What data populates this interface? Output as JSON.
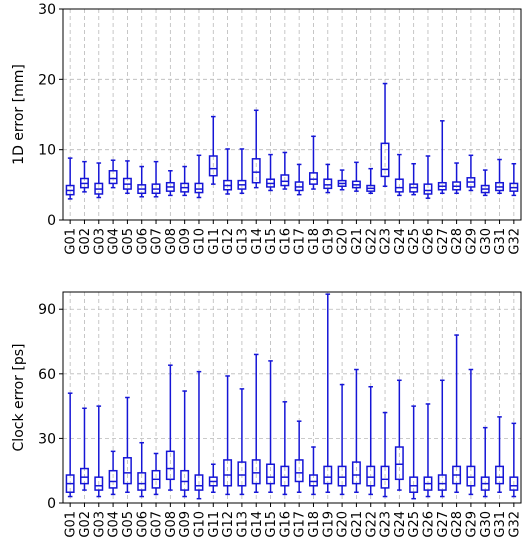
{
  "figure": {
    "colors": {
      "box": "#1515d6",
      "grid": "#b9b9b9",
      "axis": "#000000"
    }
  },
  "chart_data": [
    {
      "type": "box",
      "ylabel": "1D error [mm]",
      "ylim": [
        0,
        30
      ],
      "yticks": [
        0,
        10,
        20,
        30
      ],
      "grid": true,
      "categories": [
        "G01",
        "G02",
        "G03",
        "G04",
        "G05",
        "G06",
        "G07",
        "G08",
        "G09",
        "G10",
        "G11",
        "G12",
        "G13",
        "G14",
        "G15",
        "G16",
        "G17",
        "G18",
        "G19",
        "G20",
        "G21",
        "G22",
        "G23",
        "G24",
        "G25",
        "G26",
        "G27",
        "G28",
        "G29",
        "G30",
        "G31",
        "G32"
      ],
      "boxes": [
        {
          "min": 3.0,
          "q1": 3.6,
          "median": 4.2,
          "q3": 4.9,
          "max": 8.8
        },
        {
          "min": 4.0,
          "q1": 4.6,
          "median": 5.2,
          "q3": 5.9,
          "max": 8.3
        },
        {
          "min": 3.2,
          "q1": 3.7,
          "median": 4.4,
          "q3": 5.2,
          "max": 8.1
        },
        {
          "min": 4.6,
          "q1": 5.2,
          "median": 5.9,
          "q3": 7.0,
          "max": 8.5
        },
        {
          "min": 3.8,
          "q1": 4.4,
          "median": 5.1,
          "q3": 5.9,
          "max": 8.4
        },
        {
          "min": 3.3,
          "q1": 3.8,
          "median": 4.4,
          "q3": 5.0,
          "max": 7.6
        },
        {
          "min": 3.3,
          "q1": 3.8,
          "median": 4.4,
          "q3": 5.1,
          "max": 8.3
        },
        {
          "min": 3.5,
          "q1": 4.1,
          "median": 4.7,
          "q3": 5.3,
          "max": 7.0
        },
        {
          "min": 3.5,
          "q1": 4.0,
          "median": 4.6,
          "q3": 5.2,
          "max": 7.6
        },
        {
          "min": 3.2,
          "q1": 3.9,
          "median": 4.4,
          "q3": 5.2,
          "max": 9.2
        },
        {
          "min": 5.1,
          "q1": 6.3,
          "median": 7.3,
          "q3": 9.1,
          "max": 14.7
        },
        {
          "min": 3.7,
          "q1": 4.3,
          "median": 4.9,
          "q3": 5.6,
          "max": 10.1
        },
        {
          "min": 3.8,
          "q1": 4.4,
          "median": 5.0,
          "q3": 5.6,
          "max": 10.1
        },
        {
          "min": 4.6,
          "q1": 5.3,
          "median": 6.8,
          "q3": 8.7,
          "max": 15.6
        },
        {
          "min": 4.2,
          "q1": 4.7,
          "median": 5.2,
          "q3": 5.8,
          "max": 9.3
        },
        {
          "min": 4.4,
          "q1": 4.9,
          "median": 5.5,
          "q3": 6.4,
          "max": 9.6
        },
        {
          "min": 3.6,
          "q1": 4.2,
          "median": 4.7,
          "q3": 5.4,
          "max": 7.9
        },
        {
          "min": 4.4,
          "q1": 5.1,
          "median": 5.8,
          "q3": 6.7,
          "max": 11.9
        },
        {
          "min": 3.9,
          "q1": 4.5,
          "median": 5.0,
          "q3": 5.8,
          "max": 7.9
        },
        {
          "min": 4.3,
          "q1": 4.8,
          "median": 5.2,
          "q3": 5.6,
          "max": 7.1
        },
        {
          "min": 4.1,
          "q1": 4.6,
          "median": 5.0,
          "q3": 5.5,
          "max": 8.2
        },
        {
          "min": 3.8,
          "q1": 4.1,
          "median": 4.5,
          "q3": 4.9,
          "max": 7.3
        },
        {
          "min": 4.8,
          "q1": 6.2,
          "median": 7.2,
          "q3": 10.9,
          "max": 19.4
        },
        {
          "min": 3.5,
          "q1": 4.0,
          "median": 4.6,
          "q3": 5.8,
          "max": 9.3
        },
        {
          "min": 3.6,
          "q1": 4.0,
          "median": 4.6,
          "q3": 5.1,
          "max": 8.0
        },
        {
          "min": 3.1,
          "q1": 3.7,
          "median": 4.2,
          "q3": 5.1,
          "max": 9.1
        },
        {
          "min": 3.8,
          "q1": 4.3,
          "median": 4.8,
          "q3": 5.3,
          "max": 14.1
        },
        {
          "min": 3.8,
          "q1": 4.3,
          "median": 4.8,
          "q3": 5.4,
          "max": 8.1
        },
        {
          "min": 4.2,
          "q1": 4.7,
          "median": 5.4,
          "q3": 6.0,
          "max": 9.2
        },
        {
          "min": 3.5,
          "q1": 3.9,
          "median": 4.4,
          "q3": 4.9,
          "max": 7.1
        },
        {
          "min": 3.8,
          "q1": 4.2,
          "median": 4.7,
          "q3": 5.3,
          "max": 8.6
        },
        {
          "min": 3.5,
          "q1": 4.1,
          "median": 4.6,
          "q3": 5.2,
          "max": 8.0
        }
      ]
    },
    {
      "type": "box",
      "ylabel": "Clock error [ps]",
      "ylim": [
        0,
        98
      ],
      "yticks": [
        0,
        30,
        60,
        90
      ],
      "grid": true,
      "categories": [
        "G01",
        "G02",
        "G03",
        "G04",
        "G05",
        "G06",
        "G07",
        "G08",
        "G09",
        "G10",
        "G11",
        "G12",
        "G13",
        "G14",
        "G15",
        "G16",
        "G17",
        "G18",
        "G19",
        "G20",
        "G21",
        "G22",
        "G23",
        "G24",
        "G25",
        "G26",
        "G27",
        "G28",
        "G29",
        "G30",
        "G31",
        "G32"
      ],
      "boxes": [
        {
          "min": 3,
          "q1": 5,
          "median": 9,
          "q3": 13,
          "max": 51
        },
        {
          "min": 6,
          "q1": 9,
          "median": 12,
          "q3": 16,
          "max": 44
        },
        {
          "min": 3,
          "q1": 6,
          "median": 8,
          "q3": 12,
          "max": 45
        },
        {
          "min": 4,
          "q1": 7,
          "median": 10,
          "q3": 15,
          "max": 24
        },
        {
          "min": 5,
          "q1": 9,
          "median": 14,
          "q3": 21,
          "max": 49
        },
        {
          "min": 3,
          "q1": 6,
          "median": 9,
          "q3": 14,
          "max": 28
        },
        {
          "min": 4,
          "q1": 7,
          "median": 11,
          "q3": 15,
          "max": 23
        },
        {
          "min": 6,
          "q1": 11,
          "median": 16,
          "q3": 24,
          "max": 64
        },
        {
          "min": 3,
          "q1": 6,
          "median": 10,
          "q3": 15,
          "max": 52
        },
        {
          "min": 2,
          "q1": 6,
          "median": 8,
          "q3": 13,
          "max": 61
        },
        {
          "min": 5,
          "q1": 8,
          "median": 10,
          "q3": 12,
          "max": 18
        },
        {
          "min": 4,
          "q1": 8,
          "median": 13,
          "q3": 20,
          "max": 59
        },
        {
          "min": 4,
          "q1": 8,
          "median": 13,
          "q3": 19,
          "max": 53
        },
        {
          "min": 5,
          "q1": 9,
          "median": 14,
          "q3": 20,
          "max": 69
        },
        {
          "min": 5,
          "q1": 9,
          "median": 12,
          "q3": 18,
          "max": 66
        },
        {
          "min": 4,
          "q1": 8,
          "median": 12,
          "q3": 17,
          "max": 47
        },
        {
          "min": 5,
          "q1": 10,
          "median": 14,
          "q3": 20,
          "max": 38
        },
        {
          "min": 4,
          "q1": 8,
          "median": 10,
          "q3": 13,
          "max": 26
        },
        {
          "min": 5,
          "q1": 9,
          "median": 12,
          "q3": 17,
          "max": 97
        },
        {
          "min": 4,
          "q1": 8,
          "median": 12,
          "q3": 17,
          "max": 55
        },
        {
          "min": 5,
          "q1": 9,
          "median": 13,
          "q3": 19,
          "max": 62
        },
        {
          "min": 4,
          "q1": 8,
          "median": 12,
          "q3": 17,
          "max": 54
        },
        {
          "min": 3,
          "q1": 7,
          "median": 11,
          "q3": 17,
          "max": 42
        },
        {
          "min": 6,
          "q1": 11,
          "median": 18,
          "q3": 26,
          "max": 57
        },
        {
          "min": 2,
          "q1": 5,
          "median": 8,
          "q3": 12,
          "max": 45
        },
        {
          "min": 3,
          "q1": 6,
          "median": 9,
          "q3": 12,
          "max": 46
        },
        {
          "min": 3,
          "q1": 6,
          "median": 9,
          "q3": 13,
          "max": 57
        },
        {
          "min": 5,
          "q1": 9,
          "median": 13,
          "q3": 17,
          "max": 78
        },
        {
          "min": 4,
          "q1": 8,
          "median": 12,
          "q3": 17,
          "max": 62
        },
        {
          "min": 3,
          "q1": 6,
          "median": 9,
          "q3": 12,
          "max": 35
        },
        {
          "min": 5,
          "q1": 9,
          "median": 12,
          "q3": 17,
          "max": 40
        },
        {
          "min": 3,
          "q1": 6,
          "median": 8,
          "q3": 12,
          "max": 37
        }
      ]
    }
  ]
}
